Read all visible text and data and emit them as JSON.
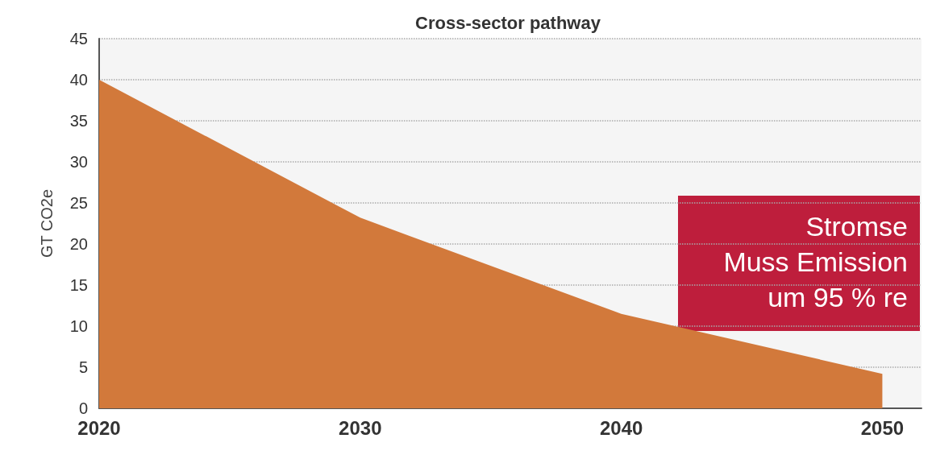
{
  "chart_data": {
    "type": "area",
    "title": "Cross-sector pathway",
    "ylabel": "GT CO2e",
    "x": [
      2020,
      2030,
      2040,
      2050
    ],
    "series": [
      {
        "color": "#d2793b",
        "values": [
          40,
          23.2,
          11.5,
          4.2
        ]
      }
    ],
    "xlim": [
      2020,
      2051.5
    ],
    "xticks": [
      2020,
      2030,
      2040,
      2050
    ],
    "ylim": [
      0,
      45
    ],
    "yticks": [
      0,
      5,
      10,
      15,
      20,
      25,
      30,
      35,
      40,
      45
    ],
    "grid": "y",
    "annotations": [
      "Stromse\nMuss Emission\num 95 % re"
    ]
  }
}
